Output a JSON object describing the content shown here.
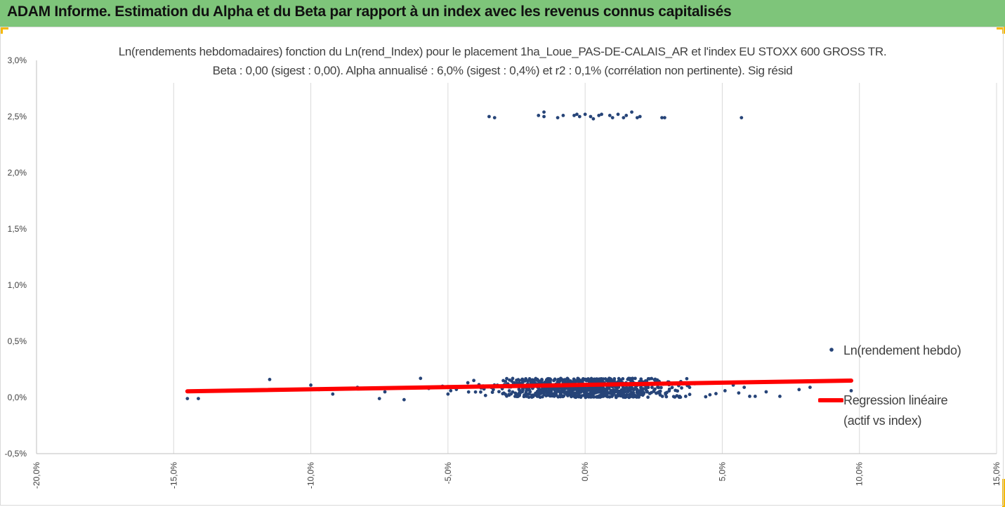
{
  "header": {
    "title": "ADAM Informe. Estimation du Alpha et du Beta par rapport à un index avec les revenus connus capitalisés",
    "background": "#7ec57a",
    "corner_color": "#f5b800"
  },
  "chart_data": {
    "type": "scatter",
    "title_line1": "Ln(rendements hebdomadaires) fonction du Ln(rend_Index) pour le placement 1ha_Loue_PAS-DE-CALAIS_AR et l'index EU STOXX 600 GROSS TR.",
    "title_line2": "Beta : 0,00 (sigest : 0,00). Alpha annualisé : 6,0% (sigest : 0,4%) et r2 : 0,1% (corrélation non pertinente). Sig résid",
    "xlim": [
      -0.2,
      0.15
    ],
    "ylim": [
      -0.005,
      0.03
    ],
    "x_ticks": [
      -0.2,
      -0.15,
      -0.1,
      -0.05,
      0.0,
      0.05,
      0.1,
      0.15
    ],
    "x_tick_labels": [
      "-20,0%",
      "-15,0%",
      "-10,0%",
      "-5,0%",
      "0,0%",
      "5,0%",
      "10,0%",
      "15,0%"
    ],
    "y_ticks": [
      -0.005,
      0.0,
      0.005,
      0.01,
      0.015,
      0.02,
      0.025,
      0.03
    ],
    "y_tick_labels": [
      "-0,5%",
      "0,0%",
      "0,5%",
      "1,0%",
      "1,5%",
      "2,0%",
      "2,5%",
      "3,0%"
    ],
    "grid": "vertical",
    "legend_position": "right",
    "series": [
      {
        "name": "Ln(rendement hebdo)",
        "kind": "points",
        "color": "#264478",
        "cluster": {
          "count": 900,
          "x_center": 0.0,
          "x_spread": 0.04,
          "y_min": 0.0,
          "y_max": 0.0017
        },
        "points": [
          [
            -0.145,
            -0.0001
          ],
          [
            -0.141,
            -0.0001
          ],
          [
            -0.115,
            0.0016
          ],
          [
            -0.1,
            0.0011
          ],
          [
            -0.097,
            0.0007
          ],
          [
            -0.092,
            0.0003
          ],
          [
            -0.086,
            0.0008
          ],
          [
            -0.083,
            0.0009
          ],
          [
            -0.075,
            -0.0001
          ],
          [
            -0.073,
            0.0005
          ],
          [
            -0.066,
            -0.0002
          ],
          [
            -0.06,
            0.0017
          ],
          [
            -0.057,
            0.0008
          ],
          [
            -0.052,
            0.001
          ],
          [
            -0.05,
            0.0003
          ],
          [
            -0.049,
            0.0006
          ],
          [
            0.051,
            0.0006
          ],
          [
            0.054,
            0.0011
          ],
          [
            0.056,
            0.0004
          ],
          [
            0.058,
            0.0009
          ],
          [
            0.06,
            0.0001
          ],
          [
            0.062,
            0.0001
          ],
          [
            0.066,
            0.0005
          ],
          [
            0.071,
            0.0001
          ],
          [
            0.078,
            0.0007
          ],
          [
            0.082,
            0.0009
          ],
          [
            0.097,
            0.0006
          ],
          [
            -0.035,
            0.025
          ],
          [
            -0.033,
            0.0249
          ],
          [
            -0.017,
            0.0251
          ],
          [
            -0.015,
            0.0254
          ],
          [
            -0.015,
            0.025
          ],
          [
            -0.01,
            0.0249
          ],
          [
            -0.008,
            0.0251
          ],
          [
            -0.004,
            0.0251
          ],
          [
            -0.003,
            0.0252
          ],
          [
            -0.002,
            0.025
          ],
          [
            0.0,
            0.0252
          ],
          [
            0.002,
            0.025
          ],
          [
            0.003,
            0.0248
          ],
          [
            0.005,
            0.0251
          ],
          [
            0.006,
            0.0252
          ],
          [
            0.009,
            0.0251
          ],
          [
            0.01,
            0.0249
          ],
          [
            0.012,
            0.0252
          ],
          [
            0.014,
            0.0249
          ],
          [
            0.015,
            0.0251
          ],
          [
            0.017,
            0.0254
          ],
          [
            0.019,
            0.0249
          ],
          [
            0.02,
            0.025
          ],
          [
            0.028,
            0.0249
          ],
          [
            0.029,
            0.0249
          ],
          [
            0.057,
            0.0249
          ]
        ]
      },
      {
        "name": "Regression linéaire (actif vs index)",
        "kind": "line",
        "color": "#ff0000",
        "x": [
          -0.145,
          0.097
        ],
        "y": [
          0.00055,
          0.0015
        ]
      }
    ],
    "legend_labels": [
      "Ln(rendement hebdo)",
      "Regression linéaire",
      "(actif vs index)"
    ]
  }
}
